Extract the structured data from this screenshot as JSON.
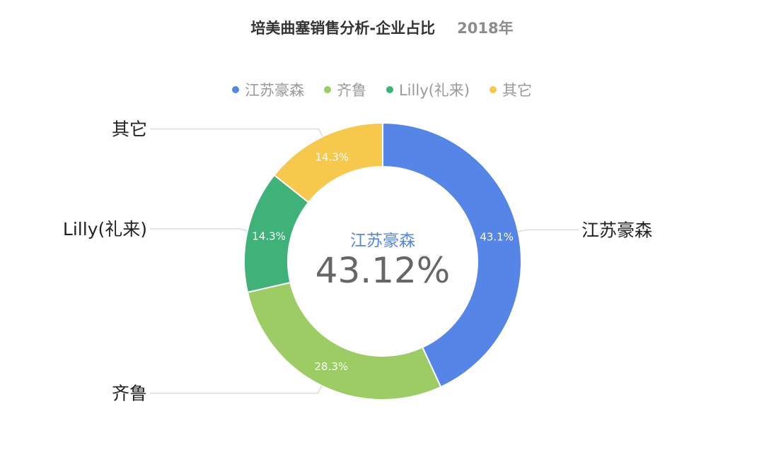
{
  "title": {
    "main": "培美曲塞销售分析-企业占比",
    "sub": "2018年"
  },
  "legend": [
    {
      "label": "江苏豪森",
      "color": "#5585e6"
    },
    {
      "label": "齐鲁",
      "color": "#9ccc63"
    },
    {
      "label": "Lilly(礼来)",
      "color": "#3fb27a"
    },
    {
      "label": "其它",
      "color": "#f6c84b"
    }
  ],
  "center": {
    "label": "江苏豪森",
    "value": "43.12%",
    "label_color": "#5585e6"
  },
  "chart_data": {
    "type": "pie",
    "variant": "donut",
    "title": "培美曲塞销售分析-企业占比",
    "subtitle": "2018年",
    "legend_position": "top-center",
    "slices": [
      {
        "name": "江苏豪森",
        "value": 43.12,
        "label": "43.1%",
        "color": "#5585e6"
      },
      {
        "name": "齐鲁",
        "value": 28.3,
        "label": "28.3%",
        "color": "#9ccc63"
      },
      {
        "name": "Lilly(礼来)",
        "value": 14.3,
        "label": "14.3%",
        "color": "#3fb27a"
      },
      {
        "name": "其它",
        "value": 14.3,
        "label": "14.3%",
        "color": "#f6c84b"
      }
    ]
  }
}
